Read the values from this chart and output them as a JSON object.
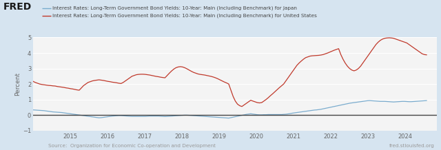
{
  "legend_japan": "Interest Rates: Long-Term Government Bond Yields: 10-Year: Main (Including Benchmark) for Japan",
  "legend_us": "Interest Rates: Long-Term Government Bond Yields: 10-Year: Main (Including Benchmark) for United States",
  "ylabel": "Percent",
  "source_left": "Source:  Organization for Economic Co-operation and Development",
  "source_right": "fred.stlouisfed.org",
  "background_color": "#d6e4f0",
  "plot_background": "#f4f4f4",
  "japan_color": "#7aacce",
  "us_color": "#c0392b",
  "ylim": [
    -1,
    5
  ],
  "yticks": [
    -1,
    0,
    1,
    2,
    3,
    4,
    5
  ],
  "xtick_years": [
    "2015",
    "2016",
    "2017",
    "2018",
    "2019",
    "2020",
    "2021",
    "2022",
    "2023",
    "2024"
  ],
  "japan_data": [
    0.33,
    0.32,
    0.31,
    0.3,
    0.29,
    0.28,
    0.26,
    0.24,
    0.22,
    0.2,
    0.19,
    0.18,
    0.17,
    0.16,
    0.14,
    0.12,
    0.1,
    0.08,
    0.06,
    0.04,
    0.02,
    0.0,
    -0.02,
    -0.04,
    -0.06,
    -0.08,
    -0.1,
    -0.12,
    -0.14,
    -0.16,
    -0.18,
    -0.17,
    -0.15,
    -0.13,
    -0.11,
    -0.09,
    -0.07,
    -0.06,
    -0.05,
    -0.04,
    -0.04,
    -0.05,
    -0.06,
    -0.07,
    -0.08,
    -0.09,
    -0.09,
    -0.09,
    -0.09,
    -0.09,
    -0.09,
    -0.09,
    -0.08,
    -0.07,
    -0.07,
    -0.07,
    -0.07,
    -0.07,
    -0.08,
    -0.09,
    -0.1,
    -0.09,
    -0.08,
    -0.07,
    -0.06,
    -0.05,
    -0.04,
    -0.03,
    -0.02,
    -0.01,
    -0.01,
    -0.02,
    -0.03,
    -0.04,
    -0.05,
    -0.06,
    -0.07,
    -0.08,
    -0.09,
    -0.1,
    -0.11,
    -0.12,
    -0.13,
    -0.14,
    -0.15,
    -0.16,
    -0.17,
    -0.18,
    -0.19,
    -0.2,
    -0.17,
    -0.14,
    -0.11,
    -0.08,
    -0.05,
    -0.02,
    0.01,
    0.04,
    0.06,
    0.08,
    0.06,
    0.04,
    0.02,
    0.01,
    0.01,
    0.02,
    0.02,
    0.03,
    0.03,
    0.03,
    0.03,
    0.03,
    0.03,
    0.03,
    0.04,
    0.05,
    0.07,
    0.09,
    0.12,
    0.14,
    0.16,
    0.18,
    0.2,
    0.22,
    0.24,
    0.26,
    0.28,
    0.3,
    0.32,
    0.33,
    0.35,
    0.37,
    0.4,
    0.43,
    0.46,
    0.49,
    0.52,
    0.55,
    0.58,
    0.61,
    0.64,
    0.67,
    0.7,
    0.73,
    0.76,
    0.78,
    0.8,
    0.82,
    0.84,
    0.86,
    0.88,
    0.9,
    0.92,
    0.93,
    0.92,
    0.91,
    0.9,
    0.89,
    0.88,
    0.88,
    0.88,
    0.87,
    0.86,
    0.85,
    0.84,
    0.85,
    0.86,
    0.87,
    0.88,
    0.88,
    0.87,
    0.86,
    0.86,
    0.87,
    0.88,
    0.89,
    0.9,
    0.91,
    0.92,
    0.93
  ],
  "us_data": [
    2.17,
    2.1,
    2.05,
    2.0,
    1.97,
    1.95,
    1.93,
    1.91,
    1.9,
    1.88,
    1.87,
    1.84,
    1.82,
    1.8,
    1.78,
    1.75,
    1.73,
    1.7,
    1.68,
    1.65,
    1.62,
    1.6,
    1.75,
    1.9,
    2.0,
    2.1,
    2.15,
    2.2,
    2.23,
    2.25,
    2.27,
    2.25,
    2.23,
    2.2,
    2.17,
    2.15,
    2.12,
    2.1,
    2.08,
    2.05,
    2.03,
    2.1,
    2.2,
    2.3,
    2.4,
    2.5,
    2.55,
    2.6,
    2.62,
    2.63,
    2.63,
    2.62,
    2.6,
    2.58,
    2.55,
    2.52,
    2.49,
    2.47,
    2.44,
    2.42,
    2.4,
    2.55,
    2.7,
    2.84,
    2.96,
    3.05,
    3.1,
    3.12,
    3.1,
    3.05,
    2.98,
    2.9,
    2.82,
    2.75,
    2.7,
    2.65,
    2.62,
    2.6,
    2.58,
    2.55,
    2.52,
    2.49,
    2.45,
    2.4,
    2.34,
    2.27,
    2.2,
    2.13,
    2.07,
    2.0,
    1.6,
    1.2,
    0.9,
    0.7,
    0.6,
    0.55,
    0.65,
    0.75,
    0.85,
    0.95,
    0.9,
    0.85,
    0.8,
    0.78,
    0.8,
    0.9,
    1.0,
    1.12,
    1.25,
    1.37,
    1.5,
    1.63,
    1.76,
    1.88,
    2.0,
    2.2,
    2.4,
    2.6,
    2.8,
    3.0,
    3.2,
    3.35,
    3.48,
    3.6,
    3.7,
    3.75,
    3.8,
    3.82,
    3.83,
    3.84,
    3.85,
    3.87,
    3.9,
    3.95,
    4.0,
    4.06,
    4.12,
    4.18,
    4.23,
    4.28,
    3.9,
    3.6,
    3.35,
    3.15,
    3.0,
    2.9,
    2.85,
    2.9,
    3.0,
    3.15,
    3.35,
    3.55,
    3.75,
    3.95,
    4.15,
    4.35,
    4.55,
    4.7,
    4.82,
    4.9,
    4.95,
    4.97,
    4.98,
    4.97,
    4.95,
    4.9,
    4.85,
    4.8,
    4.75,
    4.7,
    4.65,
    4.55,
    4.45,
    4.35,
    4.25,
    4.15,
    4.05,
    3.95,
    3.9,
    3.88
  ]
}
